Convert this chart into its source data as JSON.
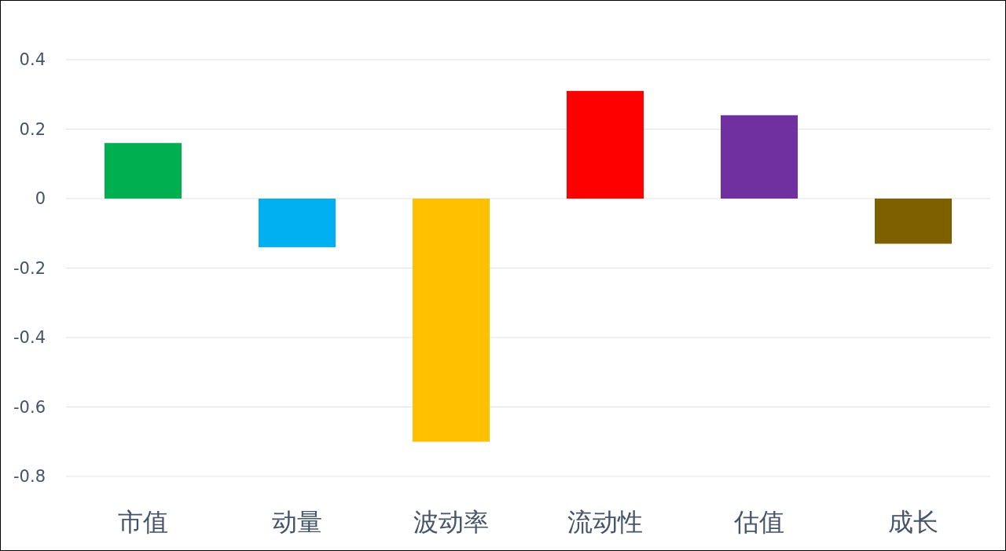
{
  "chart_data": {
    "type": "bar",
    "categories": [
      "市值",
      "动量",
      "波动率",
      "流动性",
      "估值",
      "成长"
    ],
    "values": [
      0.16,
      -0.14,
      -0.7,
      0.31,
      0.24,
      -0.13
    ],
    "colors": [
      "#00b050",
      "#00b0f0",
      "#ffc000",
      "#ff0000",
      "#7030a0",
      "#7f6000"
    ],
    "ylim": [
      -0.8,
      0.4
    ],
    "yticks": [
      {
        "value": -0.8,
        "label": "-0.8"
      },
      {
        "value": -0.6,
        "label": "-0.6"
      },
      {
        "value": -0.4,
        "label": "-0.4"
      },
      {
        "value": -0.2,
        "label": "-0.2"
      },
      0,
      0.2,
      0.4
    ],
    "grid": true
  }
}
